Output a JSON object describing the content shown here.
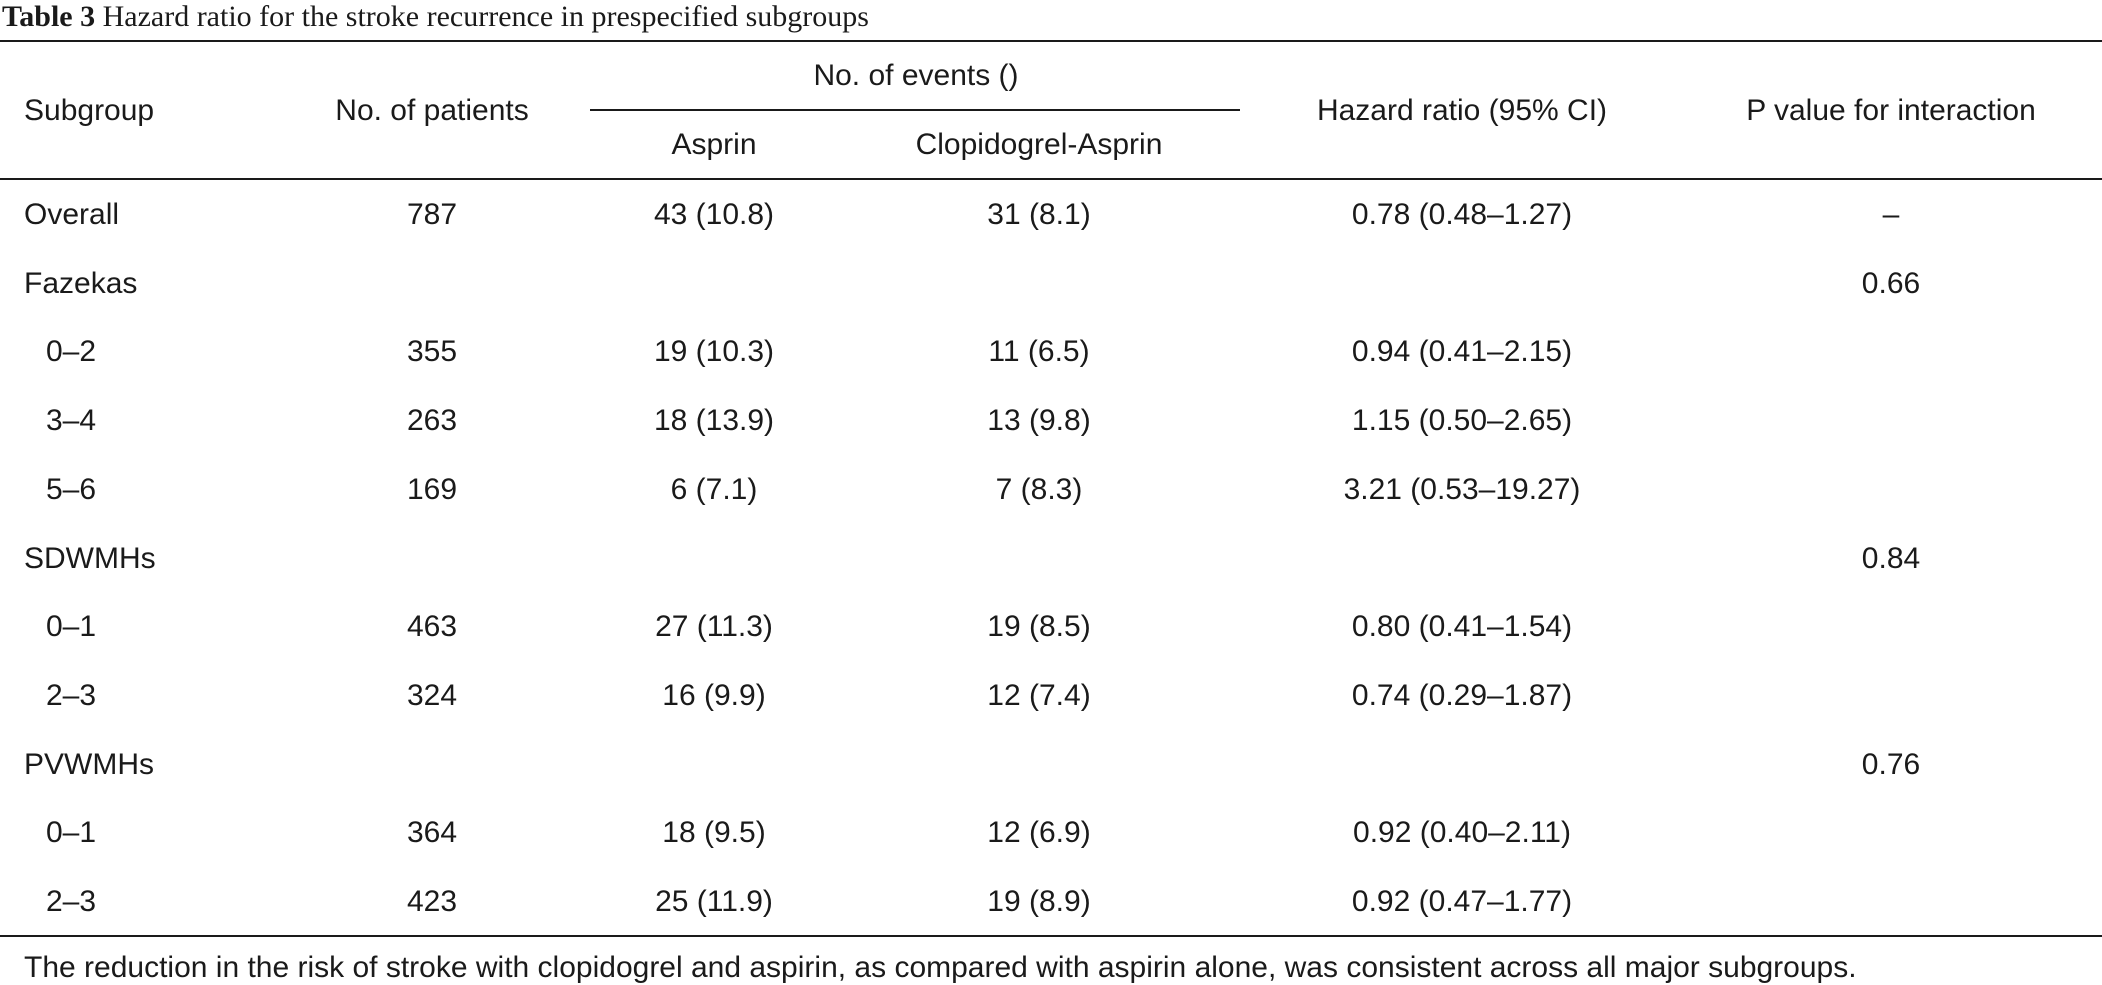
{
  "caption": {
    "label": "Table 3",
    "text": "Hazard ratio for the stroke recurrence in prespecified subgroups"
  },
  "headers": {
    "subgroup": "Subgroup",
    "patients": "No. of patients",
    "events_group": "No. of events ()",
    "aspirin": "Asprin",
    "clopidogrel_aspirin": "Clopidogrel-Asprin",
    "hazard_ratio": "Hazard ratio (95% CI)",
    "p_value": "P value for interaction"
  },
  "rows": [
    {
      "subgroup": "Overall",
      "indent": false,
      "patients": "787",
      "aspirin": "43 (10.8)",
      "clopidogrel_aspirin": "31 (8.1)",
      "hazard_ratio": "0.78 (0.48–1.27)",
      "p_value": "–"
    },
    {
      "subgroup": "Fazekas",
      "indent": false,
      "patients": "",
      "aspirin": "",
      "clopidogrel_aspirin": "",
      "hazard_ratio": "",
      "p_value": "0.66"
    },
    {
      "subgroup": "0–2",
      "indent": true,
      "patients": "355",
      "aspirin": "19 (10.3)",
      "clopidogrel_aspirin": "11 (6.5)",
      "hazard_ratio": "0.94 (0.41–2.15)",
      "p_value": ""
    },
    {
      "subgroup": "3–4",
      "indent": true,
      "patients": "263",
      "aspirin": "18 (13.9)",
      "clopidogrel_aspirin": "13 (9.8)",
      "hazard_ratio": "1.15 (0.50–2.65)",
      "p_value": ""
    },
    {
      "subgroup": "5–6",
      "indent": true,
      "patients": "169",
      "aspirin": "6 (7.1)",
      "clopidogrel_aspirin": "7 (8.3)",
      "hazard_ratio": "3.21 (0.53–19.27)",
      "p_value": ""
    },
    {
      "subgroup": "SDWMHs",
      "indent": false,
      "patients": "",
      "aspirin": "",
      "clopidogrel_aspirin": "",
      "hazard_ratio": "",
      "p_value": "0.84"
    },
    {
      "subgroup": "0–1",
      "indent": true,
      "patients": "463",
      "aspirin": "27 (11.3)",
      "clopidogrel_aspirin": "19 (8.5)",
      "hazard_ratio": "0.80 (0.41–1.54)",
      "p_value": ""
    },
    {
      "subgroup": "2–3",
      "indent": true,
      "patients": "324",
      "aspirin": "16 (9.9)",
      "clopidogrel_aspirin": "12 (7.4)",
      "hazard_ratio": "0.74 (0.29–1.87)",
      "p_value": ""
    },
    {
      "subgroup": "PVWMHs",
      "indent": false,
      "patients": "",
      "aspirin": "",
      "clopidogrel_aspirin": "",
      "hazard_ratio": "",
      "p_value": "0.76"
    },
    {
      "subgroup": "0–1",
      "indent": true,
      "patients": "364",
      "aspirin": "18 (9.5)",
      "clopidogrel_aspirin": "12 (6.9)",
      "hazard_ratio": "0.92 (0.40–2.11)",
      "p_value": ""
    },
    {
      "subgroup": "2–3",
      "indent": true,
      "patients": "423",
      "aspirin": "25 (11.9)",
      "clopidogrel_aspirin": "19 (8.9)",
      "hazard_ratio": "0.92 (0.47–1.77)",
      "p_value": ""
    }
  ],
  "footnote": "The reduction in the risk of stroke with clopidogrel and aspirin, as compared with aspirin alone, was consistent across all major subgroups."
}
